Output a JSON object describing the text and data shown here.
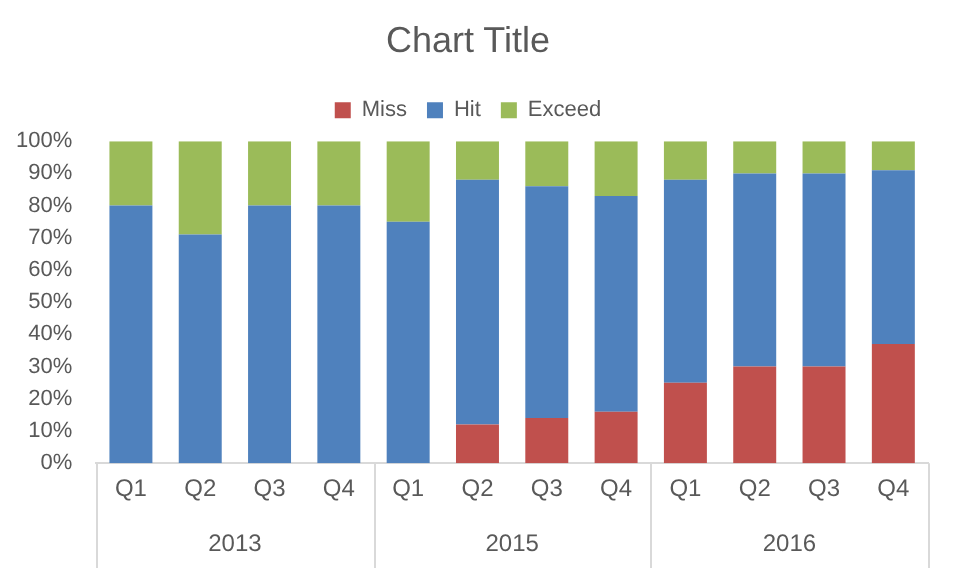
{
  "chart_data": {
    "type": "bar",
    "title": "Chart Title",
    "stacked": true,
    "legend": "top",
    "grid": false,
    "categories": [
      "Q1",
      "Q2",
      "Q3",
      "Q4",
      "Q1",
      "Q2",
      "Q3",
      "Q4",
      "Q1",
      "Q2",
      "Q3",
      "Q4"
    ],
    "series": [
      {
        "name": "Miss",
        "color": "#c0504d",
        "values": [
          0,
          0,
          0,
          0,
          0,
          12,
          14,
          16,
          25,
          30,
          30,
          37
        ]
      },
      {
        "name": "Hit",
        "color": "#4f81bd",
        "values": [
          80,
          71,
          80,
          80,
          75,
          76,
          72,
          67,
          63,
          60,
          60,
          54
        ]
      },
      {
        "name": "Exceed",
        "color": "#9bbb59",
        "values": [
          20,
          29,
          20,
          20,
          25,
          12,
          14,
          17,
          12,
          10,
          10,
          9
        ]
      }
    ],
    "ylim": [
      0,
      100
    ],
    "yticks": [
      {
        "value": 0,
        "label": "0%"
      },
      {
        "value": 10,
        "label": "10%"
      },
      {
        "value": 20,
        "label": "20%"
      },
      {
        "value": 30,
        "label": "30%"
      },
      {
        "value": 40,
        "label": "40%"
      },
      {
        "value": 50,
        "label": "50%"
      },
      {
        "value": 60,
        "label": "60%"
      },
      {
        "value": 70,
        "label": "70%"
      },
      {
        "value": 80,
        "label": "80%"
      },
      {
        "value": 90,
        "label": "90%"
      },
      {
        "value": 100,
        "label": "100%"
      }
    ],
    "annotations": [
      "2013",
      "2015",
      "2016"
    ]
  }
}
